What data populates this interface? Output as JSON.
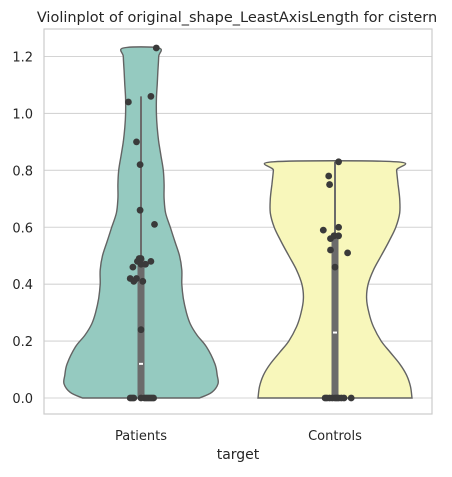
{
  "chart_data": {
    "type": "violin",
    "title": "Violinplot of original_shape_LeastAxisLength for cistern",
    "xlabel": "target",
    "ylabel": "",
    "ylim": [
      -0.06,
      1.3
    ],
    "yticks": [
      0.0,
      0.2,
      0.4,
      0.6,
      0.8,
      1.0,
      1.2
    ],
    "grid": "horizontal",
    "categories": [
      "Patients",
      "Controls"
    ],
    "colors": {
      "Patients": "#95cac0",
      "Controls": "#f8f7bb",
      "outline": "#636363",
      "box": "#6b6b6b",
      "points": "#3a3a3a",
      "grid": "#d4d4d4",
      "spine": "#cccccc"
    },
    "violins": [
      {
        "category": "Patients",
        "range": [
          0.0,
          1.23
        ],
        "median": 0.12,
        "q1": 0.0,
        "q3": 0.49,
        "whisker": [
          0.0,
          1.06
        ],
        "density": [
          [
            0.0,
            0.76
          ],
          [
            0.02,
            0.92
          ],
          [
            0.05,
            1.0
          ],
          [
            0.08,
            0.99
          ],
          [
            0.12,
            0.96
          ],
          [
            0.18,
            0.85
          ],
          [
            0.22,
            0.73
          ],
          [
            0.26,
            0.64
          ],
          [
            0.3,
            0.59
          ],
          [
            0.35,
            0.55
          ],
          [
            0.4,
            0.53
          ],
          [
            0.45,
            0.53
          ],
          [
            0.5,
            0.5
          ],
          [
            0.55,
            0.44
          ],
          [
            0.6,
            0.38
          ],
          [
            0.65,
            0.32
          ],
          [
            0.7,
            0.3
          ],
          [
            0.75,
            0.3
          ],
          [
            0.8,
            0.29
          ],
          [
            0.85,
            0.26
          ],
          [
            0.9,
            0.23
          ],
          [
            0.95,
            0.21
          ],
          [
            1.0,
            0.2
          ],
          [
            1.05,
            0.2
          ],
          [
            1.1,
            0.21
          ],
          [
            1.15,
            0.22
          ],
          [
            1.2,
            0.23
          ],
          [
            1.23,
            0.23
          ]
        ],
        "points": [
          [
            0.0,
            0.0
          ],
          [
            -0.1,
            0.0
          ],
          [
            -0.08,
            0.0
          ],
          [
            -0.12,
            0.0
          ],
          [
            0.04,
            0.0
          ],
          [
            0.06,
            0.0
          ],
          [
            0.08,
            0.0
          ],
          [
            0.1,
            0.0
          ],
          [
            0.12,
            0.0
          ],
          [
            0.14,
            0.0
          ],
          [
            0.0,
            0.24
          ],
          [
            0.02,
            0.41
          ],
          [
            -0.05,
            0.42
          ],
          [
            -0.08,
            0.41
          ],
          [
            -0.12,
            0.42
          ],
          [
            -0.09,
            0.46
          ],
          [
            -0.04,
            0.48
          ],
          [
            -0.02,
            0.49
          ],
          [
            0.0,
            0.49
          ],
          [
            0.0,
            0.47
          ],
          [
            0.11,
            0.48
          ],
          [
            0.05,
            0.47
          ],
          [
            0.15,
            0.61
          ],
          [
            -0.01,
            0.66
          ],
          [
            -0.01,
            0.82
          ],
          [
            -0.05,
            0.9
          ],
          [
            -0.14,
            1.04
          ],
          [
            0.11,
            1.06
          ],
          [
            0.17,
            1.23
          ]
        ]
      },
      {
        "category": "Controls",
        "range": [
          0.0,
          0.83
        ],
        "median": 0.23,
        "q1": 0.0,
        "q3": 0.58,
        "whisker": [
          0.0,
          0.83
        ],
        "density": [
          [
            0.0,
            1.0
          ],
          [
            0.04,
            0.98
          ],
          [
            0.08,
            0.93
          ],
          [
            0.12,
            0.84
          ],
          [
            0.16,
            0.72
          ],
          [
            0.2,
            0.6
          ],
          [
            0.25,
            0.5
          ],
          [
            0.3,
            0.44
          ],
          [
            0.35,
            0.41
          ],
          [
            0.4,
            0.43
          ],
          [
            0.45,
            0.5
          ],
          [
            0.5,
            0.6
          ],
          [
            0.55,
            0.7
          ],
          [
            0.6,
            0.79
          ],
          [
            0.65,
            0.84
          ],
          [
            0.7,
            0.84
          ],
          [
            0.75,
            0.82
          ],
          [
            0.8,
            0.8
          ],
          [
            0.83,
            0.8
          ]
        ],
        "points": [
          [
            -0.03,
            0.0
          ],
          [
            -0.06,
            0.0
          ],
          [
            -0.09,
            0.0
          ],
          [
            -0.11,
            0.0
          ],
          [
            0.0,
            0.0
          ],
          [
            0.02,
            0.0
          ],
          [
            0.04,
            0.0
          ],
          [
            0.07,
            0.0
          ],
          [
            0.1,
            0.0
          ],
          [
            0.18,
            0.0
          ],
          [
            0.0,
            0.46
          ],
          [
            0.14,
            0.51
          ],
          [
            -0.05,
            0.52
          ],
          [
            -0.05,
            0.56
          ],
          [
            -0.01,
            0.57
          ],
          [
            0.04,
            0.57
          ],
          [
            0.04,
            0.6
          ],
          [
            -0.13,
            0.59
          ],
          [
            -0.06,
            0.75
          ],
          [
            -0.07,
            0.78
          ],
          [
            0.04,
            0.83
          ]
        ]
      }
    ]
  }
}
